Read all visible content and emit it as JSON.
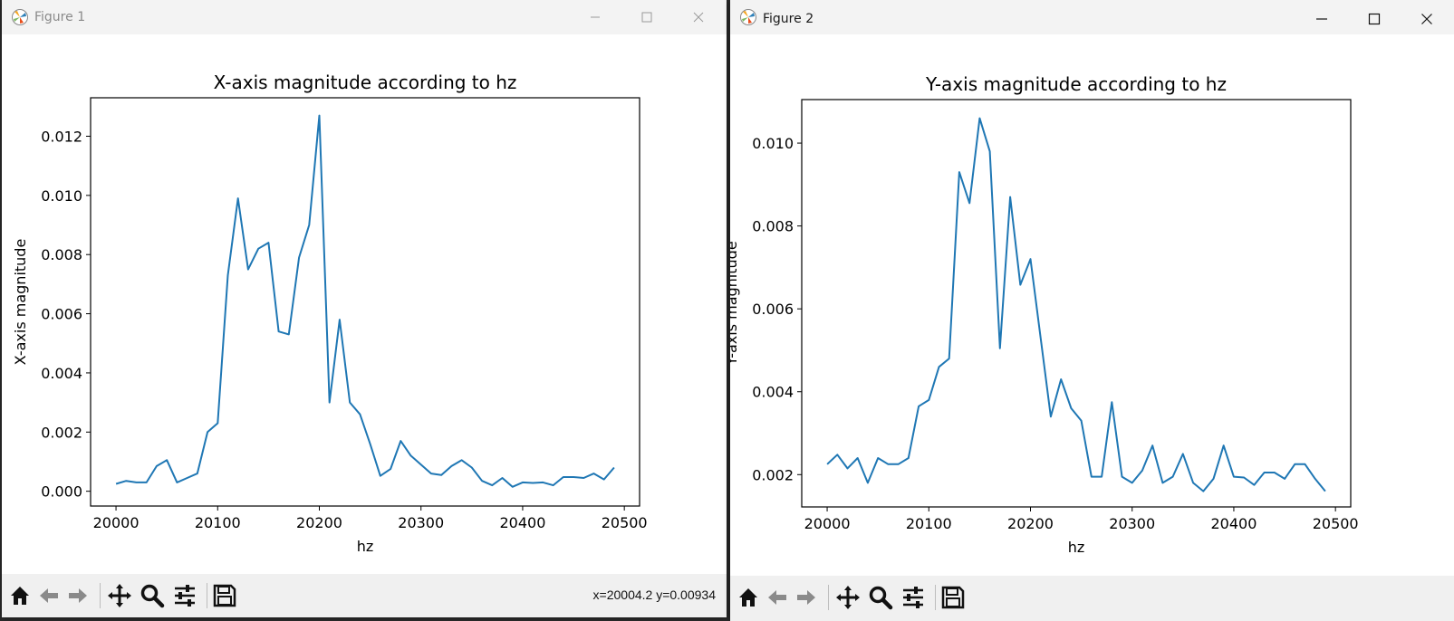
{
  "windows": [
    {
      "title": "Figure 1",
      "status": "x=20004.2 y=0.00934",
      "toolbar": [
        "home-icon",
        "back-icon",
        "forward-icon",
        "pan-icon",
        "zoom-icon",
        "configure-subplots-icon",
        "save-icon"
      ]
    },
    {
      "title": "Figure 2",
      "status": "",
      "toolbar": [
        "home-icon",
        "back-icon",
        "forward-icon",
        "pan-icon",
        "zoom-icon",
        "configure-subplots-icon",
        "save-icon"
      ]
    }
  ],
  "colors": {
    "line": "#1f77b4"
  },
  "chart_data": [
    {
      "type": "line",
      "title": "X-axis magnitude according to hz",
      "xlabel": "hz",
      "ylabel": "X-axis magnitude",
      "xlim": [
        19975,
        20515
      ],
      "ylim": [
        -0.0005,
        0.0133
      ],
      "xticks": [
        "20000",
        "20100",
        "20200",
        "20300",
        "20400",
        "20500"
      ],
      "yticks": [
        "0.000",
        "0.002",
        "0.004",
        "0.006",
        "0.008",
        "0.010",
        "0.012"
      ],
      "grid": false,
      "x": [
        20000,
        20010,
        20020,
        20030,
        20040,
        20050,
        20060,
        20070,
        20080,
        20090,
        20100,
        20110,
        20120,
        20130,
        20140,
        20150,
        20160,
        20170,
        20180,
        20190,
        20200,
        20210,
        20220,
        20230,
        20240,
        20250,
        20260,
        20270,
        20280,
        20290,
        20300,
        20310,
        20320,
        20330,
        20340,
        20350,
        20360,
        20370,
        20380,
        20390,
        20400,
        20410,
        20420,
        20430,
        20440,
        20450,
        20460,
        20470,
        20480,
        20490
      ],
      "y": [
        0.00025,
        0.00035,
        0.0003,
        0.0003,
        0.00085,
        0.00105,
        0.0003,
        0.00045,
        0.0006,
        0.002,
        0.0023,
        0.0073,
        0.0099,
        0.0075,
        0.0082,
        0.0084,
        0.0054,
        0.0053,
        0.0079,
        0.009,
        0.0127,
        0.003,
        0.0058,
        0.003,
        0.0026,
        0.0016,
        0.00052,
        0.00075,
        0.0017,
        0.0012,
        0.0009,
        0.0006,
        0.00055,
        0.00085,
        0.00105,
        0.0008,
        0.00035,
        0.0002,
        0.00045,
        0.00015,
        0.0003,
        0.00028,
        0.0003,
        0.0002,
        0.00048,
        0.00048,
        0.00045,
        0.0006,
        0.0004,
        0.0008
      ]
    },
    {
      "type": "line",
      "title": "Y-axis magnitude according to hz",
      "xlabel": "hz",
      "ylabel": "Y-axis magnitude",
      "xlim": [
        19975,
        20515
      ],
      "ylim": [
        0.00122,
        0.01105
      ],
      "xticks": [
        "20000",
        "20100",
        "20200",
        "20300",
        "20400",
        "20500"
      ],
      "yticks": [
        "0.002",
        "0.004",
        "0.006",
        "0.008",
        "0.010"
      ],
      "grid": false,
      "x": [
        20000,
        20010,
        20020,
        20030,
        20040,
        20050,
        20060,
        20070,
        20080,
        20090,
        20100,
        20110,
        20120,
        20130,
        20140,
        20150,
        20160,
        20170,
        20180,
        20190,
        20200,
        20210,
        20220,
        20230,
        20240,
        20250,
        20260,
        20270,
        20280,
        20290,
        20300,
        20310,
        20320,
        20330,
        20340,
        20350,
        20360,
        20370,
        20380,
        20390,
        20400,
        20410,
        20420,
        20430,
        20440,
        20450,
        20460,
        20470,
        20480,
        20490
      ],
      "y": [
        0.00225,
        0.00248,
        0.00215,
        0.0024,
        0.0018,
        0.0024,
        0.00225,
        0.00225,
        0.0024,
        0.00365,
        0.0038,
        0.0046,
        0.0048,
        0.0093,
        0.00855,
        0.0106,
        0.0098,
        0.00505,
        0.0087,
        0.00658,
        0.0072,
        0.0053,
        0.0034,
        0.0043,
        0.0036,
        0.0033,
        0.00195,
        0.00195,
        0.00375,
        0.00195,
        0.0018,
        0.0021,
        0.0027,
        0.0018,
        0.00195,
        0.0025,
        0.0018,
        0.0016,
        0.0019,
        0.0027,
        0.00195,
        0.00193,
        0.00175,
        0.00205,
        0.00205,
        0.0019,
        0.00225,
        0.00225,
        0.0019,
        0.0016
      ]
    }
  ]
}
